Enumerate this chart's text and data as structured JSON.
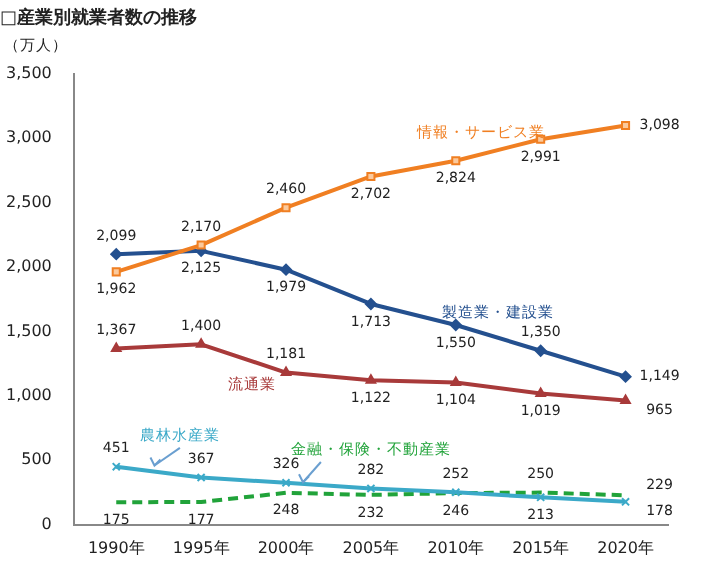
{
  "chart_data": {
    "type": "line",
    "title": "□産業別就業者数の推移",
    "ylabel": "（万人）",
    "categories": [
      "1990年",
      "1995年",
      "2000年",
      "2005年",
      "2010年",
      "2015年",
      "2020年"
    ],
    "series": [
      {
        "name": "情報・サービス業",
        "color": "#f07f22",
        "marker": "square",
        "values": [
          1962,
          2170,
          2460,
          2702,
          2824,
          2991,
          3098
        ],
        "value_labels": [
          "1,962",
          "2,170",
          "2,460",
          "2,702",
          "2,824",
          "2,991",
          "3,098"
        ]
      },
      {
        "name": "製造業・建設業",
        "color": "#24508f",
        "marker": "diamond",
        "values": [
          2099,
          2125,
          1979,
          1713,
          1550,
          1350,
          1149
        ],
        "value_labels": [
          "2,099",
          "2,125",
          "1,979",
          "1,713",
          "1,550",
          "1,350",
          "1,149"
        ]
      },
      {
        "name": "流通業",
        "color": "#a83a3a",
        "marker": "triangle",
        "values": [
          1367,
          1400,
          1181,
          1122,
          1104,
          1019,
          965
        ],
        "value_labels": [
          "1,367",
          "1,400",
          "1,181",
          "1,122",
          "1,104",
          "1,019",
          "965"
        ]
      },
      {
        "name": "農林水産業",
        "color": "#3ba9c8",
        "marker": "cross",
        "values": [
          451,
          367,
          326,
          282,
          252,
          213,
          178
        ],
        "value_labels": [
          "451",
          "367",
          "326",
          "282",
          "252",
          "213",
          "178"
        ]
      },
      {
        "name": "金融・保険・不動産業",
        "color": "#21a33a",
        "marker": "none",
        "line_style": "dashed",
        "values": [
          175,
          177,
          248,
          232,
          246,
          250,
          229
        ],
        "value_labels": [
          "175",
          "177",
          "248",
          "232",
          "246",
          "250",
          "229"
        ]
      }
    ],
    "ylim": [
      0,
      3500
    ],
    "yticks": [
      {
        "value": 0,
        "label": "0"
      },
      {
        "value": 500,
        "label": "500"
      },
      {
        "value": 1000,
        "label": "1,000"
      },
      {
        "value": 1500,
        "label": "1,500"
      },
      {
        "value": 2000,
        "label": "2,000"
      },
      {
        "value": 2500,
        "label": "2,500"
      },
      {
        "value": 3000,
        "label": "3,000"
      },
      {
        "value": 3500,
        "label": "3,500"
      }
    ],
    "grid": false,
    "legend": false
  }
}
